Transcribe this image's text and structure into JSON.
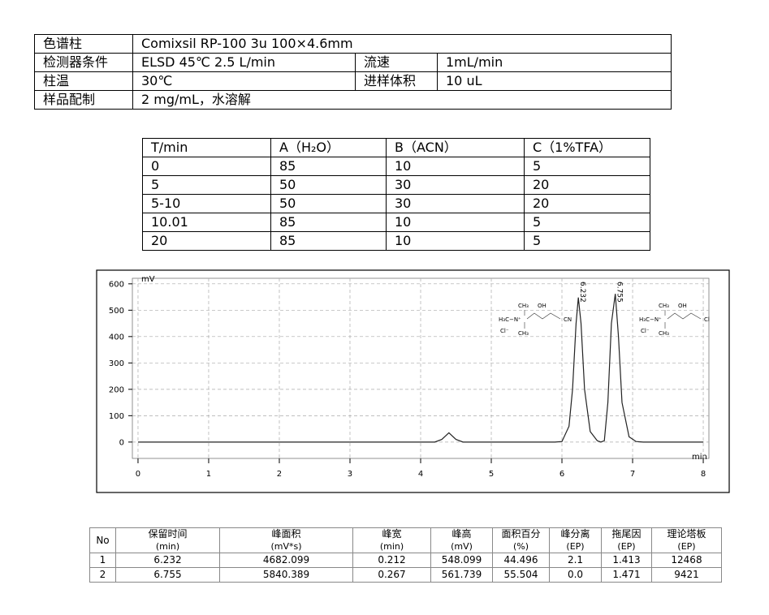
{
  "conditions": {
    "rows": [
      [
        "色谱柱",
        "Comixsil RP-100 3u 100×4.6mm"
      ],
      [
        "检测器条件",
        "ELSD 45℃  2.5 L/min",
        "流速",
        "1mL/min"
      ],
      [
        "柱温",
        "30℃",
        "进样体积",
        "10 uL"
      ],
      [
        "样品配制",
        "2 mg/mL，水溶解"
      ]
    ]
  },
  "gradient": {
    "rows": [
      [
        "T/min",
        "A（H₂O）",
        "B（ACN）",
        "C（1%TFA）"
      ],
      [
        "0",
        "85",
        "10",
        "5"
      ],
      [
        "5",
        "50",
        "30",
        "20"
      ],
      [
        "5-10",
        "50",
        "30",
        "20"
      ],
      [
        "10.01",
        "85",
        "10",
        "5"
      ],
      [
        "20",
        "85",
        "10",
        "5"
      ]
    ]
  },
  "chart_data": {
    "type": "line",
    "y_label": "mV",
    "x_label": "min",
    "xlim": [
      -0.08,
      8.08
    ],
    "xticks": [
      0,
      1,
      2,
      3,
      4,
      5,
      6,
      7,
      8
    ],
    "ylim": [
      -62,
      621
    ],
    "yticks": [
      0,
      100,
      200,
      300,
      400,
      500,
      600
    ],
    "grid": true,
    "series": [
      {
        "color": "#222222",
        "x": [
          0,
          4.2,
          4.3,
          4.4,
          4.5,
          4.6,
          5.9,
          6.0,
          6.1,
          6.15,
          6.2,
          6.232,
          6.27,
          6.32,
          6.4,
          6.5,
          6.55,
          6.6,
          6.65,
          6.7,
          6.755,
          6.8,
          6.85,
          6.95,
          7.05,
          7.15,
          8
        ],
        "values": [
          0,
          0,
          10,
          35,
          10,
          0,
          0,
          2,
          60,
          200,
          450,
          548,
          450,
          200,
          40,
          5,
          0,
          5,
          150,
          450,
          562,
          400,
          150,
          20,
          2,
          0,
          0
        ]
      }
    ],
    "peak_labels": [
      "6.232",
      "6.755"
    ],
    "structures": [
      {
        "labels": [
          "CH₃",
          "OH",
          "H₃C−N⁺",
          "CN",
          "Cl⁻",
          "CH₃"
        ]
      },
      {
        "labels": [
          "CH₃",
          "OH",
          "H₃C−N⁺",
          "Cl",
          "Cl⁻",
          "CH₃"
        ]
      }
    ]
  },
  "results": {
    "columns": [
      {
        "name": "No"
      },
      {
        "name": "保留时间",
        "unit": "(min)"
      },
      {
        "name": "峰面积",
        "unit": "(mV*s)"
      },
      {
        "name": "峰宽",
        "unit": "(min)"
      },
      {
        "name": "峰高",
        "unit": "(mV)"
      },
      {
        "name": "面积百分",
        "unit": "(%)"
      },
      {
        "name": "峰分离",
        "unit": "(EP)"
      },
      {
        "name": "拖尾因",
        "unit": "(EP)"
      },
      {
        "name": "理论塔板",
        "unit": "(EP)"
      }
    ],
    "rows": [
      [
        "1",
        "6.232",
        "4682.099",
        "0.212",
        "548.099",
        "44.496",
        "2.1",
        "1.413",
        "12468"
      ],
      [
        "2",
        "6.755",
        "5840.389",
        "0.267",
        "561.739",
        "55.504",
        "0.0",
        "1.471",
        "9421"
      ]
    ]
  }
}
